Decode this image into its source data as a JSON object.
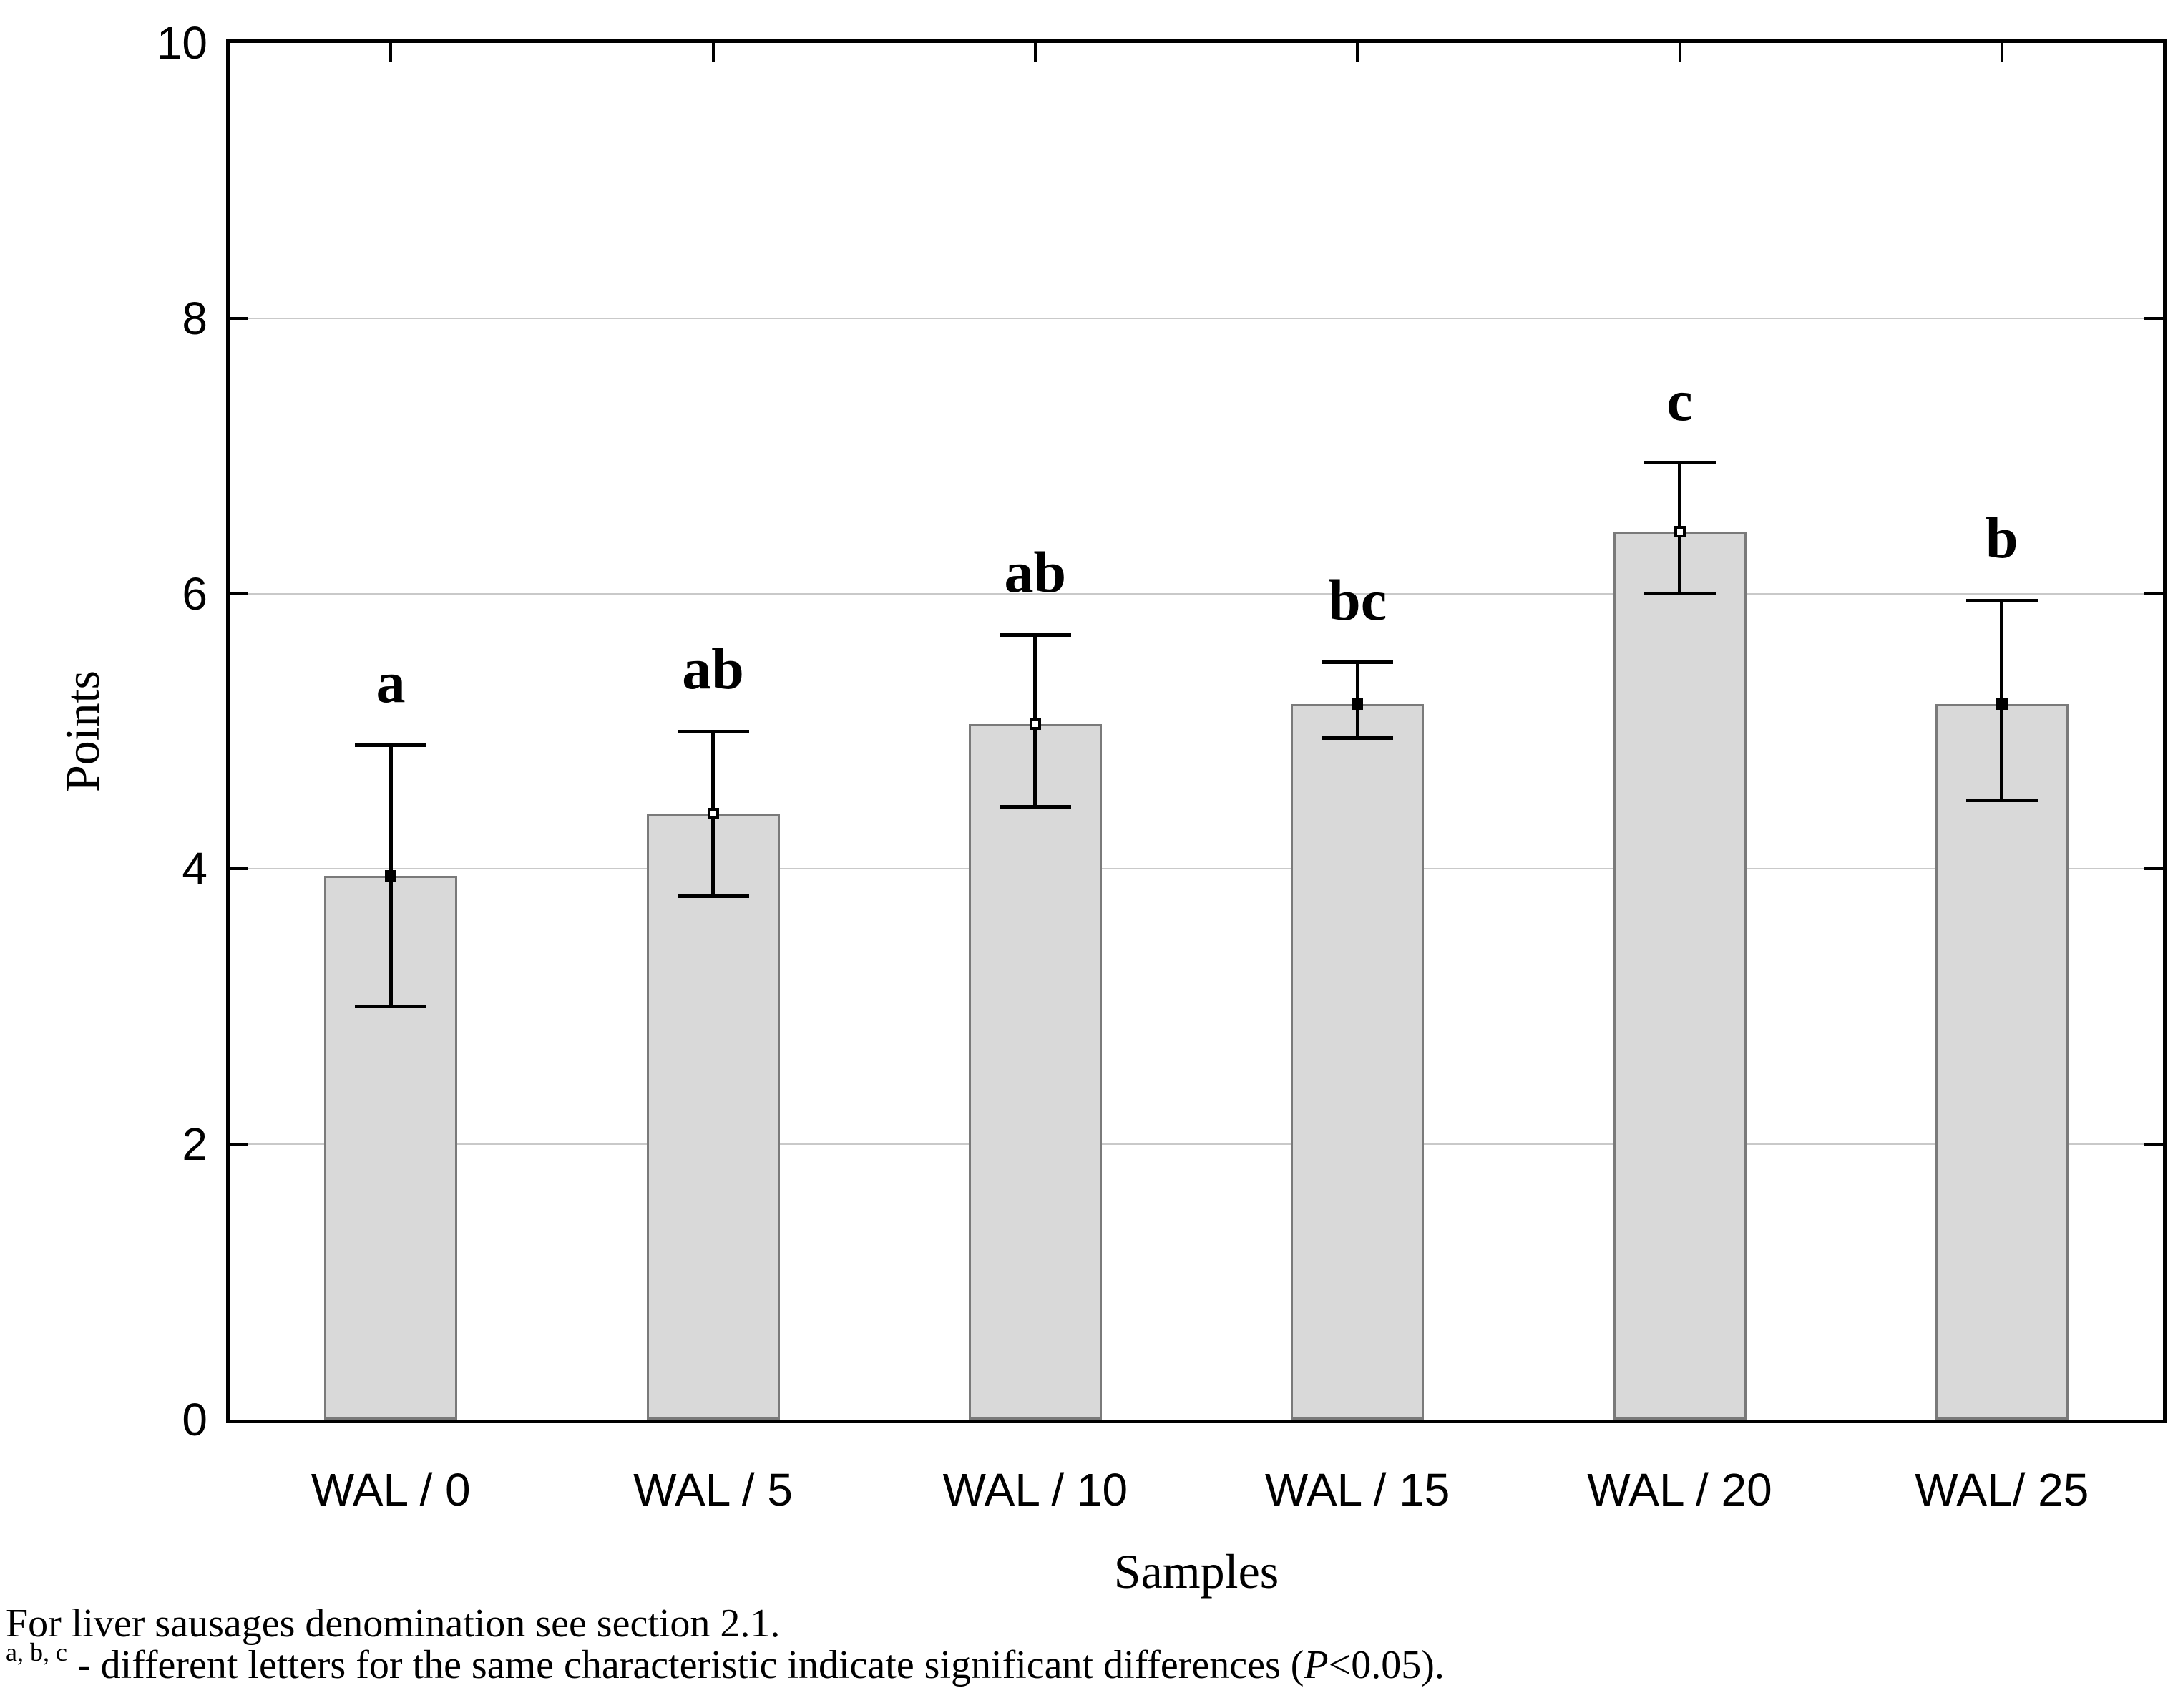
{
  "chart_data": {
    "type": "bar",
    "title": "",
    "xlabel": "Samples",
    "ylabel": "Points",
    "ylim": [
      0,
      10
    ],
    "yticks": [
      0,
      2,
      4,
      6,
      8,
      10
    ],
    "grid_yticks": [
      2,
      4,
      6,
      8
    ],
    "grid": true,
    "legend": false,
    "categories": [
      "WAL / 0",
      "WAL / 5",
      "WAL / 10",
      "WAL / 15",
      "WAL / 20",
      "WAL/ 25"
    ],
    "series": [
      {
        "name": "Points",
        "values": [
          3.95,
          4.4,
          5.05,
          5.2,
          6.45,
          5.2
        ],
        "error_high": [
          4.9,
          5.0,
          5.7,
          5.5,
          6.95,
          5.95
        ],
        "error_low": [
          3.0,
          3.8,
          4.45,
          4.95,
          6.0,
          4.5
        ],
        "sig_letters": [
          "a",
          "ab",
          "ab",
          "bc",
          "c",
          "b"
        ],
        "marker_styles": [
          "filled",
          "open",
          "open",
          "filled",
          "open",
          "filled"
        ]
      }
    ],
    "bar_fill_color": "#d9d9d9",
    "bar_border_color": "#7a7a7a",
    "gridline_color": "#c9c9c9",
    "axis_color": "#000000"
  },
  "footnotes": {
    "line1": "For liver sausages denomination see section 2.1.",
    "line2_sup": "a, b, c",
    "line2_before_p": " - different letters for the same characteristic indicate significant differences (",
    "line2_p": "P",
    "line2_after_p": "<0.05)."
  }
}
